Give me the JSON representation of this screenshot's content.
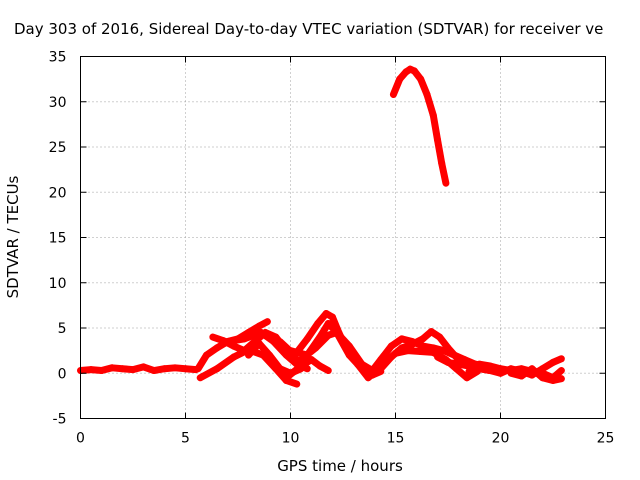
{
  "chart_data": {
    "type": "scatter",
    "title": "Day 303 of 2016, Sidereal Day-to-day VTEC variation (SDTVAR) for receiver ve",
    "xlabel": "GPS time / hours",
    "ylabel": "SDTVAR / TECUs",
    "xlim": [
      0,
      25
    ],
    "ylim": [
      -5,
      35
    ],
    "xticks": [
      "0",
      "5",
      "10",
      "15",
      "20",
      "25"
    ],
    "yticks": [
      "-5",
      "0",
      "5",
      "10",
      "15",
      "20",
      "25",
      "30",
      "35"
    ],
    "grid": true,
    "legend": "none",
    "color": "#ff0000",
    "series": [
      {
        "x": [
          0.0,
          0.5,
          1.0,
          1.5,
          2.0,
          2.5,
          3.0,
          3.5,
          4.0,
          4.5,
          5.0,
          5.5
        ],
        "y": [
          0.3,
          0.4,
          0.3,
          0.6,
          0.5,
          0.4,
          0.7,
          0.3,
          0.5,
          0.6,
          0.5,
          0.4
        ]
      },
      {
        "x": [
          5.6,
          6.0,
          6.5,
          7.0,
          7.5,
          8.0,
          8.5,
          8.9
        ],
        "y": [
          0.5,
          2.0,
          2.8,
          3.5,
          3.8,
          4.5,
          5.2,
          5.7
        ]
      },
      {
        "x": [
          6.3,
          6.8,
          7.3,
          7.8,
          8.3,
          8.8,
          9.3,
          9.8,
          10.3
        ],
        "y": [
          4.0,
          3.6,
          3.0,
          2.5,
          3.5,
          4.5,
          4.0,
          2.5,
          1.5
        ]
      },
      {
        "x": [
          5.7,
          6.5,
          7.3,
          8.0,
          8.7,
          9.3,
          9.8,
          10.3
        ],
        "y": [
          -0.5,
          0.5,
          1.8,
          2.6,
          2.0,
          0.5,
          -0.8,
          -1.2
        ]
      },
      {
        "x": [
          7.0,
          7.8,
          8.6,
          9.2,
          9.8,
          10.3,
          10.8
        ],
        "y": [
          3.5,
          3.8,
          4.5,
          3.5,
          2.0,
          1.0,
          0.5
        ]
      },
      {
        "x": [
          8.0,
          8.5,
          9.0,
          9.5,
          10.0,
          10.5
        ],
        "y": [
          2.0,
          3.3,
          2.0,
          0.5,
          0.0,
          0.5
        ]
      },
      {
        "x": [
          9.5,
          10.2,
          10.8,
          11.3,
          11.7,
          12.0,
          12.3,
          12.7,
          13.2,
          13.7,
          14.2
        ],
        "y": [
          3.5,
          2.0,
          3.8,
          5.5,
          6.6,
          6.2,
          4.5,
          2.5,
          1.0,
          -0.5,
          0.5
        ]
      },
      {
        "x": [
          10.0,
          10.8,
          11.4,
          11.8,
          12.2,
          12.8,
          13.4,
          13.9,
          14.3
        ],
        "y": [
          2.5,
          2.0,
          4.0,
          5.5,
          4.5,
          2.0,
          0.5,
          -0.2,
          0.2
        ]
      },
      {
        "x": [
          10.5,
          11.2,
          11.8,
          12.2,
          12.8,
          13.4,
          13.9
        ],
        "y": [
          1.5,
          2.8,
          4.2,
          4.5,
          3.0,
          1.0,
          0.3
        ]
      },
      {
        "x": [
          9.8,
          10.5,
          11.0,
          11.4,
          11.8
        ],
        "y": [
          -0.5,
          0.8,
          1.5,
          0.8,
          0.3
        ]
      },
      {
        "x": [
          13.8,
          14.3,
          14.8,
          15.3,
          15.8,
          16.3,
          16.8,
          17.3,
          17.8,
          18.3,
          18.8,
          19.3,
          19.8,
          20.3
        ],
        "y": [
          0.0,
          1.5,
          3.0,
          3.8,
          3.5,
          3.0,
          2.8,
          2.5,
          2.0,
          1.5,
          1.0,
          0.7,
          0.5,
          0.3
        ]
      },
      {
        "x": [
          14.3,
          14.8,
          15.3,
          15.8,
          16.3,
          16.7,
          17.1,
          17.5,
          18.0,
          18.5,
          19.0,
          19.5
        ],
        "y": [
          0.5,
          1.8,
          2.8,
          3.2,
          3.8,
          4.6,
          4.0,
          2.8,
          1.5,
          0.8,
          0.5,
          0.3
        ]
      },
      {
        "x": [
          15.0,
          15.6,
          16.2,
          16.8,
          17.4,
          17.9,
          18.4,
          18.9
        ],
        "y": [
          2.2,
          2.5,
          2.4,
          2.3,
          1.5,
          0.5,
          -0.5,
          0.2
        ]
      },
      {
        "x": [
          17.0,
          17.5,
          18.0,
          18.5,
          19.0,
          19.5,
          20.0,
          20.5,
          21.0,
          21.5,
          22.0,
          22.5,
          22.9
        ],
        "y": [
          1.8,
          1.2,
          1.0,
          0.8,
          1.0,
          0.8,
          0.5,
          0.3,
          0.5,
          0.2,
          0.0,
          -0.5,
          0.3
        ]
      },
      {
        "x": [
          18.5,
          19.0,
          19.5,
          20.0,
          20.5,
          21.0,
          21.5,
          22.0,
          22.5,
          22.9
        ],
        "y": [
          0.2,
          0.5,
          0.3,
          0.0,
          0.5,
          0.2,
          -0.2,
          0.5,
          1.2,
          1.6
        ]
      },
      {
        "x": [
          20.5,
          21.0,
          21.5,
          22.0,
          22.5,
          22.9
        ],
        "y": [
          0.0,
          -0.3,
          0.5,
          -0.5,
          -0.8,
          -0.6
        ]
      },
      {
        "x": [
          14.9,
          15.2,
          15.5,
          15.7,
          15.9,
          16.2,
          16.5,
          16.8,
          17.0,
          17.2,
          17.4
        ],
        "y": [
          30.8,
          32.5,
          33.3,
          33.6,
          33.4,
          32.5,
          30.8,
          28.5,
          25.8,
          23.2,
          21.0
        ]
      }
    ]
  }
}
